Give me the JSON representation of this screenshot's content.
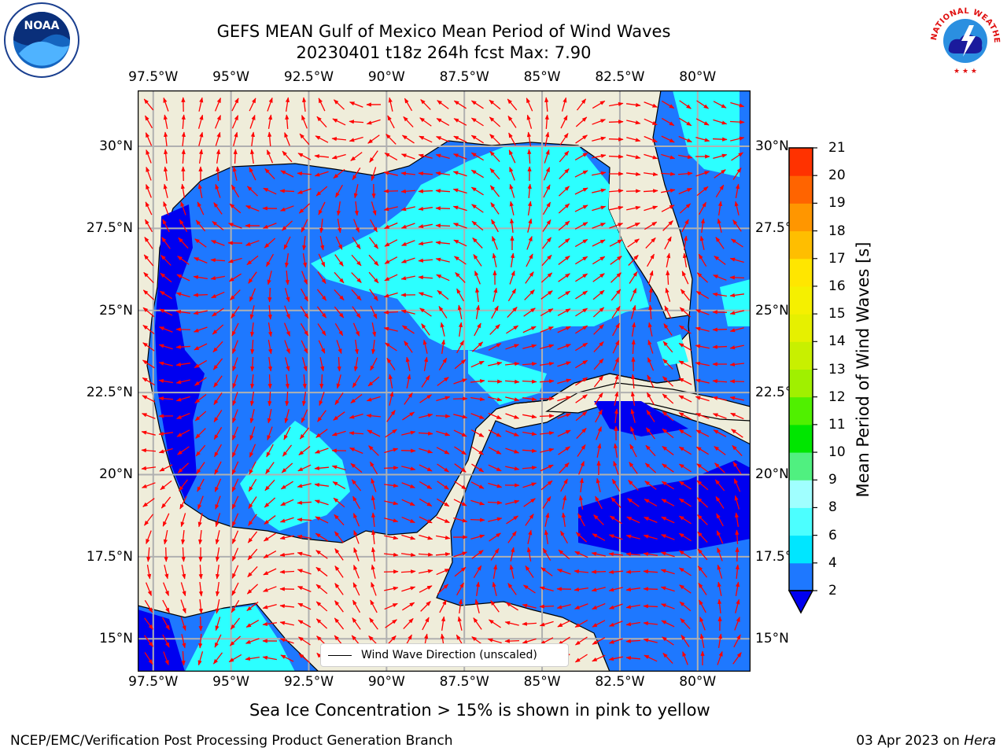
{
  "title": {
    "line1": "GEFS MEAN Gulf of Mexico Mean Period of Wind Waves",
    "line2": "20230401 t18z 264h fcst   Max: 7.90"
  },
  "map": {
    "lon_ticks_top": [
      "97.5°W",
      "95°W",
      "92.5°W",
      "90°W",
      "87.5°W",
      "85°W",
      "82.5°W",
      "80°W"
    ],
    "lon_ticks_bottom": [
      "97.5°W",
      "95°W",
      "92.5°W",
      "90°W",
      "87.5°W",
      "85°W",
      "82.5°W",
      "80°W"
    ],
    "lat_ticks_left": [
      "30°N",
      "27.5°N",
      "25°N",
      "22.5°N",
      "20°N",
      "17.5°N",
      "15°N"
    ],
    "lat_ticks_right": [
      "30°N",
      "27.5°N",
      "25°N",
      "22.5°N",
      "20°N",
      "17.5°N",
      "15°N"
    ],
    "lon_range": [
      -98,
      -78.3
    ],
    "lat_range": [
      14,
      31.7
    ],
    "grid": true,
    "colors": {
      "land": "#efedda",
      "ocean_2_4": "#1e78ff",
      "ocean_4_6": "#2cffff",
      "ocean_lt2": "#0000f0",
      "arrow": "#ff0000"
    },
    "legend": {
      "label": "Wind Wave Direction (unscaled)",
      "placement": "bottom-center"
    }
  },
  "colorbar": {
    "label": "Mean Period of Wind Waves [s]",
    "ticks": [
      "21",
      "20",
      "19",
      "18",
      "17",
      "16",
      "15",
      "14",
      "13",
      "12",
      "11",
      "10",
      "9",
      "8",
      "6",
      "4",
      "2"
    ],
    "levels": [
      2,
      4,
      6,
      8,
      9,
      10,
      11,
      12,
      13,
      14,
      15,
      16,
      17,
      18,
      19,
      20,
      21
    ],
    "colors": [
      "#1e78ff",
      "#00e6ff",
      "#4cffff",
      "#a0ffff",
      "#50f080",
      "#00e600",
      "#50f000",
      "#a0f000",
      "#c8f000",
      "#e6f000",
      "#f5f000",
      "#ffe600",
      "#ffbe00",
      "#ff9600",
      "#ff6400",
      "#ff3200",
      "#ff0000"
    ],
    "under_color": "#0000f0",
    "extend": "min"
  },
  "subtitle": "Sea Ice Concentration > 15% is shown in pink to yellow",
  "footer": {
    "left": "NCEP/EMC/Verification Post Processing Product Generation Branch",
    "right_date": "03 Apr 2023 on ",
    "right_host": "Hera"
  },
  "logos": {
    "left": "NOAA",
    "right": "NATIONAL WEATHER SERVICE"
  }
}
